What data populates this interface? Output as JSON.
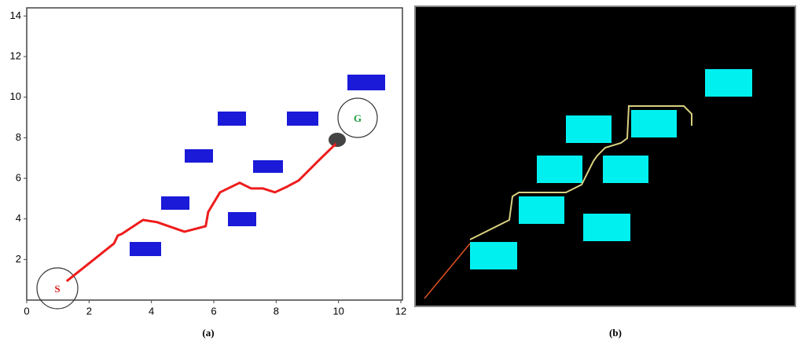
{
  "chart_data": [
    {
      "type": "line",
      "caption": "(a)",
      "start_label": "S",
      "goal_label": "G",
      "xlim": [
        0,
        12.05
      ],
      "ylim": [
        0,
        14.4
      ],
      "xticks": [
        0,
        2,
        4,
        6,
        8,
        10,
        12
      ],
      "yticks": [
        2,
        4,
        6,
        8,
        10,
        12,
        14
      ],
      "color": "#ee1c1c",
      "x": [
        1.28,
        2.8,
        2.92,
        3.05,
        3.73,
        4.18,
        5.06,
        5.74,
        5.82,
        6.2,
        6.83,
        7.2,
        7.58,
        7.96,
        8.34,
        8.72,
        9.35,
        9.92
      ],
      "y": [
        0.93,
        2.79,
        3.18,
        3.26,
        3.95,
        3.84,
        3.37,
        3.64,
        4.34,
        5.31,
        5.78,
        5.5,
        5.5,
        5.31,
        5.58,
        5.89,
        6.86,
        7.71
      ]
    },
    {
      "type": "scene",
      "caption": "(b)"
    }
  ]
}
